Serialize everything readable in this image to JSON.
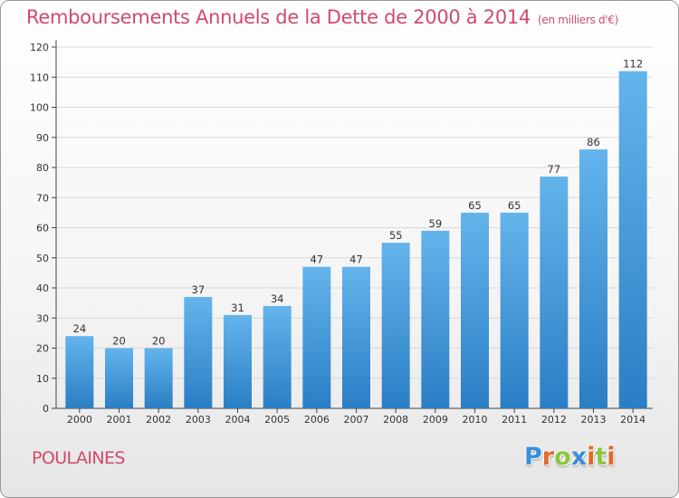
{
  "header": {
    "title": "Remboursements Annuels de la Dette de 2000 à 2014",
    "subtitle": "(en milliers d'€)"
  },
  "footer": {
    "commune": "POULAINES",
    "logo_letters": [
      "P",
      "r",
      "o",
      "x",
      "i",
      "t",
      "i"
    ],
    "logo_colors": [
      "#3a8fd8",
      "#e2682a",
      "#8cc63f",
      "#3a8fd8",
      "#e2682a",
      "#8cc63f",
      "#e2682a"
    ]
  },
  "colors": {
    "bar_top": "#64b4ec",
    "bar_bottom": "#2a7ec4",
    "title": "#d14a6a",
    "grid": "#d8d8d8"
  },
  "chart_data": {
    "type": "bar",
    "categories": [
      "2000",
      "2001",
      "2002",
      "2003",
      "2004",
      "2005",
      "2006",
      "2007",
      "2008",
      "2009",
      "2010",
      "2011",
      "2012",
      "2013",
      "2014"
    ],
    "values": [
      24,
      20,
      20,
      37,
      31,
      34,
      47,
      47,
      55,
      59,
      65,
      65,
      77,
      86,
      112
    ],
    "ylim": [
      0,
      120
    ],
    "yticks": [
      0,
      10,
      20,
      30,
      40,
      50,
      60,
      70,
      80,
      90,
      100,
      110,
      120
    ],
    "grid": true,
    "data_labels": true
  }
}
